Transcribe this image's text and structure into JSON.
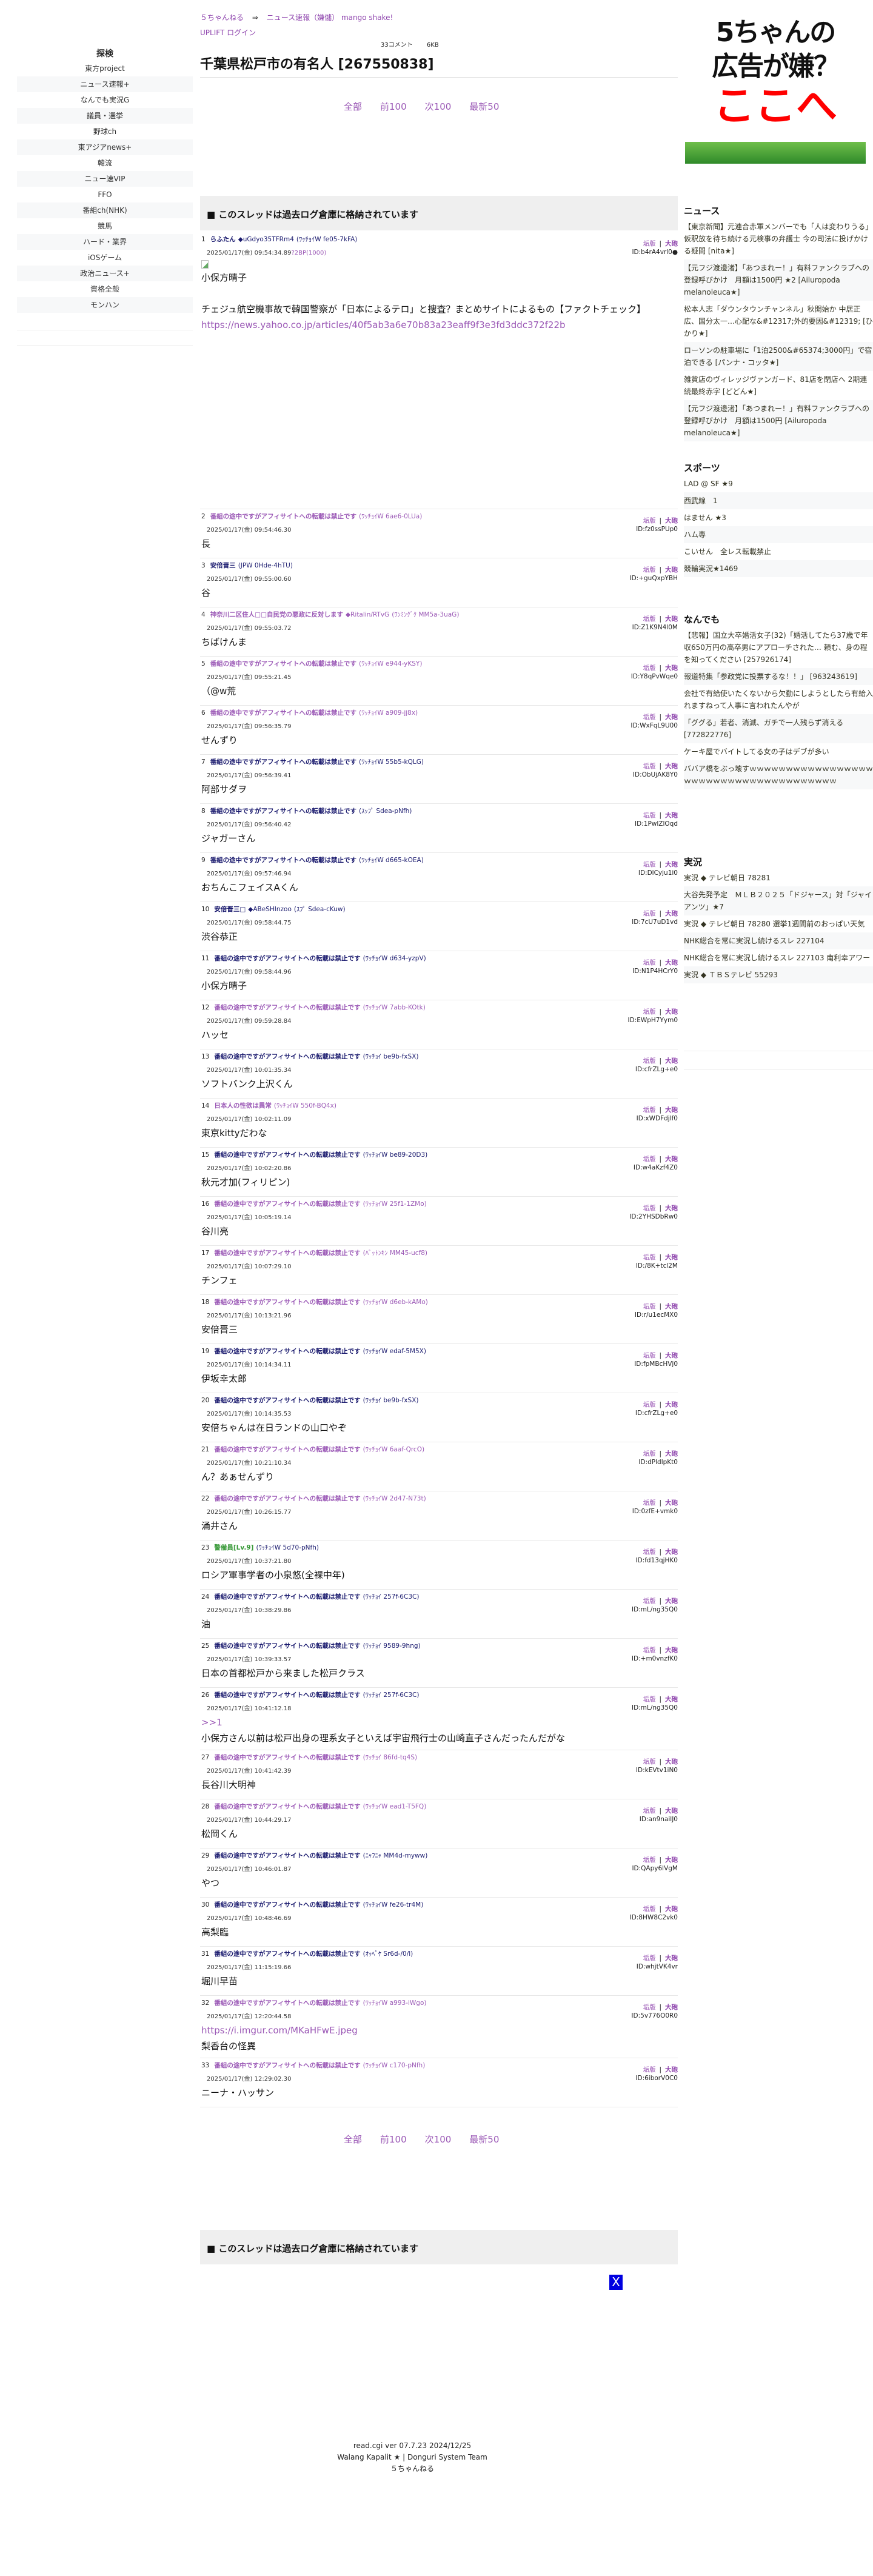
{
  "breadcrumb": {
    "home": "５ちゃんねる",
    "arrow": "⇒",
    "board": "ニュース速報（嫌儲） mango shake!"
  },
  "uplift": "UPLIFT ログイン",
  "meta": {
    "comments": "33コメント",
    "size": "6KB"
  },
  "title": "千葉県松戸市の有名人 [267550838]",
  "pager": [
    "全部",
    "前100",
    "次100",
    "最新50"
  ],
  "archive_notice": "■ このスレッドは過去ログ倉庫に格納されています",
  "close_button": "X",
  "left_sidebar": {
    "heading": "探検",
    "items": [
      "東方project",
      "ニュース速報+",
      "なんでも実況G",
      "議員・選挙",
      "野球ch",
      "東アジアnews+",
      "韓流",
      "ニュー速VIP",
      "FFO",
      "番組ch(NHK)",
      "競馬",
      "ハード・業界",
      "iOSゲーム",
      "政治ニュース+",
      "資格全般",
      "モンハン"
    ]
  },
  "ad": {
    "line1": "5ちゃんの",
    "line2": "広告が嫌？",
    "line3": "ここへ"
  },
  "right_sidebar": [
    {
      "heading": "ニュース",
      "items": [
        "【東京新聞】元連合赤軍メンバーでも「人は変わりうる」 仮釈放を待ち続ける元検事の弁護士 今の司法に投げかける疑問 [nita★]",
        "【元フジ渡邊渚】「あつまれー！」有料ファンクラブへの登録呼びかけ　月額は1500円 ★2 [Ailuropoda melanoleuca★]",
        "松本人志「ダウンタウンチャンネル」秋開始か 中居正広、国分太一…心配な&#12317;外的要因&#12319; [ひかり★]",
        "ローソンの駐車場に「1泊2500&#65374;3000円」で宿泊できる [パンナ・コッタ★]",
        "雑貨店のヴィレッジヴァンガード、81店を閉店へ 2期連続最終赤字 [どどん★]",
        "【元フジ渡邊渚】「あつまれー！」有料ファンクラブへの登録呼びかけ　月額は1500円 [Ailuropoda melanoleuca★]"
      ]
    },
    {
      "heading": "スポーツ",
      "items": [
        "LAD @ SF ★9",
        "西武線　1",
        "はません ★3",
        "ハム専",
        "こいせん　全レス転載禁止",
        "競輪実況★1469"
      ]
    },
    {
      "heading": "なんでも",
      "items": [
        "【悲報】国立大卒婚活女子(32)「婚活してたら37歳で年収650万円の高卒男にアプローチされた… 頼む、身の程を知ってください [257926174]",
        "報道特集「参政党に投票するな！！」 [963243619]",
        "会社で有給使いたくないから欠勤にしようとしたら有給入れますねって人事に言われたんやが",
        "「ググる」若者、消滅、ガチで一人残らず消える [772822776]",
        "ケーキ屋でバイトしてる女の子はデブが多い",
        "ババア橋をぶっ壊すｗｗｗｗｗｗｗｗｗｗｗｗｗｗｗｗｗｗｗｗｗｗｗｗｗｗｗｗｗｗｗｗｗｗｗｗｗｗ"
      ]
    },
    {
      "heading": "実況",
      "items": [
        "実況 ◆ テレビ朝日 78281",
        "大谷先発予定　ＭＬＢ２０２５「ドジャース」対「ジャイアンツ」★7",
        "実況 ◆ テレビ朝日 78280 選挙1週間前のおっぱい天気",
        "NHK総合を常に実況し続けるスレ 227104",
        "NHK総合を常に実況し続けるスレ 227103 南利幸アワー",
        "実況 ◆ ＴＢＳテレビ 55293"
      ]
    }
  ],
  "post_actions": {
    "report": "垢版",
    "separator": "|",
    "cannon": "大砲"
  },
  "colors": {
    "visited": "#1a1a6e",
    "link": "#9b59b6",
    "green": "#3a9a3a"
  },
  "posts": [
    {
      "num": "1",
      "name": "らふたん",
      "trip": "◆uGdyo35TFRm4",
      "info": "(ﾜｯﾁｮｲW fe05-7kFA)",
      "date": "2025/01/17(金) 09:54:34.89",
      "extra": "?2BP(1000)",
      "id": "ID:b4rA4vrl0●",
      "color": "visited",
      "image": true,
      "body": [
        "小保方晴子",
        "",
        "チェジュ航空機事故で韓国警察が「日本によるテロ」と捜査？まとめサイトによるもの【ファクトチェック】"
      ],
      "link": "https://news.yahoo.co.jp/articles/40f5ab3a6e70b83a23eaff9f3e3fd3ddc372f22b"
    },
    {
      "num": "2",
      "info": "(ﾜｯﾁｮｲW 6ae6-0LUa)",
      "date": "2025/01/17(金) 09:54:46.30",
      "id": "ID:fz0ssPUp0",
      "color": "link",
      "body": [
        "長"
      ]
    },
    {
      "num": "3",
      "name": "安倍晋三",
      "info": "(JPW 0Hde-4hTU)",
      "date": "2025/01/17(金) 09:55:00.60",
      "id": "ID:+guQxpYBH",
      "color": "visited",
      "body": [
        "谷"
      ]
    },
    {
      "num": "4",
      "name": "神奈川二区住人□□自民党の悪政に反対します",
      "trip": "◆Ritalin/RTvG",
      "info": "(ﾜﾝﾐﾝｸﾞｸ MM5a-3uaG)",
      "date": "2025/01/17(金) 09:55:03.72",
      "id": "ID:Z1K9N4l0M",
      "color": "link",
      "body": [
        "ちばけんま"
      ]
    },
    {
      "num": "5",
      "info": "(ﾜｯﾁｮｲW e944-yKSY)",
      "date": "2025/01/17(金) 09:55:21.45",
      "id": "ID:Y8qPvWqe0",
      "color": "link",
      "body": [
        "（@w荒"
      ]
    },
    {
      "num": "6",
      "info": "(ﾜｯﾁｮｲW a909-jj8x)",
      "date": "2025/01/17(金) 09:56:35.79",
      "id": "ID:WxFqL9U00",
      "color": "link",
      "body": [
        "せんずり"
      ]
    },
    {
      "num": "7",
      "info": "(ﾜｯﾁｮｲW 55b5-kQLG)",
      "date": "2025/01/17(金) 09:56:39.41",
      "id": "ID:ObUjAK8Y0",
      "color": "visited",
      "body": [
        "阿部サダヲ"
      ]
    },
    {
      "num": "8",
      "info": "(ｽｯﾌﾟ Sdea-pNfh)",
      "date": "2025/01/17(金) 09:56:40.42",
      "id": "ID:1PwlZlOqd",
      "color": "visited",
      "body": [
        "ジャガーさん"
      ]
    },
    {
      "num": "9",
      "info": "(ﾜｯﾁｮｲW d665-kOEA)",
      "date": "2025/01/17(金) 09:57:46.94",
      "id": "ID:DlCyju1i0",
      "color": "visited",
      "body": [
        "おちんこフェイスAくん"
      ]
    },
    {
      "num": "10",
      "name": "安倍晋三□",
      "trip": "◆ABeSHInzoo",
      "info": "(ｽﾌﾟ Sdea-cKuw)",
      "date": "2025/01/17(金) 09:58:44.75",
      "id": "ID:7cU7uD1vd",
      "color": "visited",
      "body": [
        "渋谷恭正"
      ]
    },
    {
      "num": "11",
      "info": "(ﾜｯﾁｮｲW d634-yzpV)",
      "date": "2025/01/17(金) 09:58:44.96",
      "id": "ID:N1P4HCrY0",
      "color": "visited",
      "body": [
        "小保方晴子"
      ]
    },
    {
      "num": "12",
      "info": "(ﾜｯﾁｮｲW 7abb-KOtk)",
      "date": "2025/01/17(金) 09:59:28.84",
      "id": "ID:EWpH7Yym0",
      "color": "link",
      "body": [
        "ハッセ"
      ]
    },
    {
      "num": "13",
      "info": "(ﾜｯﾁｮｲ be9b-fxSX)",
      "date": "2025/01/17(金) 10:01:35.34",
      "id": "ID:cfrZLg+e0",
      "color": "visited",
      "body": [
        "ソフトバンク上沢くん"
      ]
    },
    {
      "num": "14",
      "name": "日本人の性欲は異常",
      "info": "(ﾜｯﾁｮｲW 550f-BQ4x)",
      "date": "2025/01/17(金) 10:02:11.09",
      "id": "ID:xWDFdjlf0",
      "color": "link",
      "body": [
        "東京kittyだわな"
      ]
    },
    {
      "num": "15",
      "info": "(ﾜｯﾁｮｲW be89-20D3)",
      "date": "2025/01/17(金) 10:02:20.86",
      "id": "ID:w4aKzf4Z0",
      "color": "visited",
      "body": [
        "秋元才加(フィリピン)"
      ]
    },
    {
      "num": "16",
      "info": "(ﾜｯﾁｮｲW 25f1-1ZMo)",
      "date": "2025/01/17(金) 10:05:19.14",
      "id": "ID:2YHSDbRw0",
      "color": "link",
      "body": [
        "谷川亮"
      ]
    },
    {
      "num": "17",
      "info": "(ﾊﾞｯﾄﾝｷﾝ MM45-ucf8)",
      "date": "2025/01/17(金) 10:07:29.10",
      "id": "ID:/8K+tcl2M",
      "color": "link",
      "body": [
        "チンフェ"
      ]
    },
    {
      "num": "18",
      "info": "(ﾜｯﾁｮｲW d6eb-kAMo)",
      "date": "2025/01/17(金) 10:13:21.96",
      "id": "ID:r/u1ecMX0",
      "color": "link",
      "body": [
        "安倍晋三"
      ]
    },
    {
      "num": "19",
      "info": "(ﾜｯﾁｮｲW edaf-5M5X)",
      "date": "2025/01/17(金) 10:14:34.11",
      "id": "ID:fpMBcHVj0",
      "color": "visited",
      "body": [
        "伊坂幸太郎"
      ]
    },
    {
      "num": "20",
      "info": "(ﾜｯﾁｮｲ be9b-fxSX)",
      "date": "2025/01/17(金) 10:14:35.53",
      "id": "ID:cfrZLg+e0",
      "color": "visited",
      "body": [
        "安倍ちゃんは在日ランドの山口やぞ"
      ]
    },
    {
      "num": "21",
      "info": "(ﾜｯﾁｮｲW 6aaf-QrcO)",
      "date": "2025/01/17(金) 10:21:10.34",
      "id": "ID:dPldlpKt0",
      "color": "link",
      "body": [
        "ん？あぁせんずり"
      ]
    },
    {
      "num": "22",
      "info": "(ﾜｯﾁｮｲW 2d47-N73t)",
      "date": "2025/01/17(金) 10:26:15.77",
      "id": "ID:0zfE+vmk0",
      "color": "link",
      "body": [
        "涌井さん"
      ]
    },
    {
      "num": "23",
      "name": "警備員[Lv.9]",
      "info": "(ﾜｯﾁｮｲW 5d70-pNfh)",
      "date": "2025/01/17(金) 10:37:21.80",
      "id": "ID:fd13qjHK0",
      "color": "green",
      "body": [
        "ロシア軍事学者の小泉悠(全裸中年)"
      ]
    },
    {
      "num": "24",
      "info": "(ﾜｯﾁｮｲ 257f-6C3C)",
      "date": "2025/01/17(金) 10:38:29.86",
      "id": "ID:mL/ng35Q0",
      "color": "visited",
      "body": [
        "油"
      ]
    },
    {
      "num": "25",
      "info": "(ﾜｯﾁｮｲ 9589-9hng)",
      "date": "2025/01/17(金) 10:39:33.57",
      "id": "ID:+m0vnzfK0",
      "color": "visited",
      "body": [
        "日本の首都松戸から来ました松戸クラス"
      ]
    },
    {
      "num": "26",
      "info": "(ﾜｯﾁｮｲ 257f-6C3C)",
      "date": "2025/01/17(金) 10:41:12.18",
      "id": "ID:mL/ng35Q0",
      "color": "visited",
      "anchor": ">>1",
      "body": [
        "小保方さん以前は松戸出身の理系女子といえば宇宙飛行士の山崎直子さんだったんだがな"
      ]
    },
    {
      "num": "27",
      "info": "(ﾜｯﾁｮｲ 86fd-tq4S)",
      "date": "2025/01/17(金) 10:41:42.39",
      "id": "ID:kEVtv1iN0",
      "color": "link",
      "body": [
        "長谷川大明神"
      ]
    },
    {
      "num": "28",
      "info": "(ﾜｯﾁｮｲW ead1-T5FQ)",
      "date": "2025/01/17(金) 10:44:29.17",
      "id": "ID:an9nailJ0",
      "color": "link",
      "body": [
        "松岡くん"
      ]
    },
    {
      "num": "29",
      "info": "(ﾆｬﾌﾆｬ MM4d-myww)",
      "date": "2025/01/17(金) 10:46:01.87",
      "id": "ID:QApy6lVgM",
      "color": "visited",
      "body": [
        "やつ"
      ]
    },
    {
      "num": "30",
      "info": "(ﾜｯﾁｮｲW fe26-tr4M)",
      "date": "2025/01/17(金) 10:48:46.69",
      "id": "ID:8HW8C2vk0",
      "color": "visited",
      "body": [
        "高梨臨"
      ]
    },
    {
      "num": "31",
      "info": "(ｵｯﾍﾟｹ Sr6d-/0/l)",
      "date": "2025/01/17(金) 11:15:19.66",
      "id": "ID:whjtVK4vr",
      "color": "visited",
      "body": [
        "堀川早苗"
      ]
    },
    {
      "num": "32",
      "info": "(ﾜｯﾁｮｲW a993-iWgo)",
      "date": "2025/01/17(金) 12:20:44.58",
      "id": "ID:5v776O0R0",
      "color": "link",
      "anchor": "https://i.imgur.com/MKaHFwE.jpeg",
      "body": [
        "梨香台の怪異"
      ]
    },
    {
      "num": "33",
      "info": "(ﾜｯﾁｮｲW c170-pNfh)",
      "date": "2025/01/17(金) 12:29:02.30",
      "id": "ID:6iborV0C0",
      "color": "link",
      "body": [
        "ニーナ・ハッサン"
      ]
    }
  ],
  "default_name": "番組の途中ですがアフィサイトへの転載は禁止です",
  "footer": [
    "read.cgi ver 07.7.23 2024/12/25",
    "Walang Kapalit ★ | Donguri System Team",
    "５ちゃんねる"
  ]
}
